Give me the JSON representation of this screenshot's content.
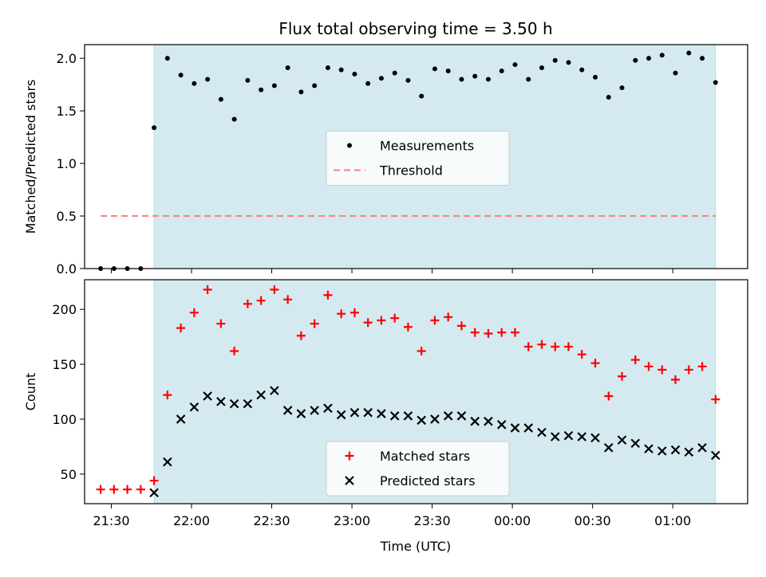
{
  "figure": {
    "title": "Flux total observing time = 3.50 h",
    "xlabel": "Time (UTC)",
    "x_tick_labels": [
      "21:30",
      "22:00",
      "22:30",
      "23:00",
      "23:30",
      "00:00",
      "00:30",
      "01:00"
    ],
    "colors": {
      "observing_band": "#d4eaf0",
      "measurements": "#000000",
      "threshold": "#ff7f7f",
      "matched": "#ff0000",
      "predicted": "#000000"
    }
  },
  "chart_data": [
    {
      "type": "scatter",
      "ylabel": "Matched/Predicted stars",
      "ylim": [
        0.0,
        2.13
      ],
      "y_ticks": [
        "0.0",
        "0.5",
        "1.0",
        "1.5",
        "2.0"
      ],
      "x_range": [
        "21:20",
        "01:28"
      ],
      "shaded_span": [
        "21:46",
        "01:16"
      ],
      "legend_placement": "center",
      "series": [
        {
          "name": "Measurements",
          "marker": "dot",
          "x": [
            "21:26",
            "21:31",
            "21:36",
            "21:41",
            "21:46",
            "21:51",
            "21:56",
            "22:01",
            "22:06",
            "22:11",
            "22:16",
            "22:21",
            "22:26",
            "22:31",
            "22:36",
            "22:41",
            "22:46",
            "22:51",
            "22:56",
            "23:01",
            "23:06",
            "23:11",
            "23:16",
            "23:21",
            "23:26",
            "23:31",
            "23:36",
            "23:41",
            "23:46",
            "23:51",
            "23:56",
            "00:01",
            "00:06",
            "00:11",
            "00:16",
            "00:21",
            "00:26",
            "00:31",
            "00:36",
            "00:41",
            "00:46",
            "00:51",
            "00:56",
            "01:01",
            "01:06",
            "01:11",
            "01:16"
          ],
          "y": [
            0.0,
            0.0,
            0.0,
            0.0,
            1.34,
            2.0,
            1.84,
            1.76,
            1.8,
            1.61,
            1.42,
            1.79,
            1.7,
            1.74,
            1.91,
            1.68,
            1.74,
            1.91,
            1.89,
            1.85,
            1.76,
            1.81,
            1.86,
            1.79,
            1.64,
            1.9,
            1.88,
            1.8,
            1.83,
            1.8,
            1.88,
            1.94,
            1.8,
            1.91,
            1.98,
            1.96,
            1.89,
            1.82,
            1.63,
            1.72,
            1.98,
            2.0,
            2.03,
            1.86,
            2.05,
            2.0,
            1.77
          ]
        },
        {
          "name": "Threshold",
          "marker": "dashed-line",
          "x": [
            "21:26",
            "01:16"
          ],
          "y": [
            0.5,
            0.5
          ]
        }
      ]
    },
    {
      "type": "scatter",
      "ylabel": "Count",
      "ylim": [
        23,
        227
      ],
      "y_ticks": [
        "50",
        "100",
        "150",
        "200"
      ],
      "x_range": [
        "21:20",
        "01:28"
      ],
      "shaded_span": [
        "21:46",
        "01:16"
      ],
      "legend_placement": "lower center",
      "series": [
        {
          "name": "Matched stars",
          "marker": "plus",
          "x": [
            "21:26",
            "21:31",
            "21:36",
            "21:41",
            "21:46",
            "21:51",
            "21:56",
            "22:01",
            "22:06",
            "22:11",
            "22:16",
            "22:21",
            "22:26",
            "22:31",
            "22:36",
            "22:41",
            "22:46",
            "22:51",
            "22:56",
            "23:01",
            "23:06",
            "23:11",
            "23:16",
            "23:21",
            "23:26",
            "23:31",
            "23:36",
            "23:41",
            "23:46",
            "23:51",
            "23:56",
            "00:01",
            "00:06",
            "00:11",
            "00:16",
            "00:21",
            "00:26",
            "00:31",
            "00:36",
            "00:41",
            "00:46",
            "00:51",
            "00:56",
            "01:01",
            "01:06",
            "01:11",
            "01:16"
          ],
          "y": [
            36,
            36,
            36,
            36,
            44,
            122,
            183,
            197,
            218,
            187,
            162,
            205,
            208,
            218,
            209,
            176,
            187,
            213,
            196,
            197,
            188,
            190,
            192,
            184,
            162,
            190,
            193,
            185,
            179,
            178,
            179,
            179,
            166,
            168,
            166,
            166,
            159,
            151,
            121,
            139,
            154,
            148,
            145,
            136,
            145,
            148,
            118
          ]
        },
        {
          "name": "Predicted stars",
          "marker": "x",
          "x": [
            "21:46",
            "21:51",
            "21:56",
            "22:01",
            "22:06",
            "22:11",
            "22:16",
            "22:21",
            "22:26",
            "22:31",
            "22:36",
            "22:41",
            "22:46",
            "22:51",
            "22:56",
            "23:01",
            "23:06",
            "23:11",
            "23:16",
            "23:21",
            "23:26",
            "23:31",
            "23:36",
            "23:41",
            "23:46",
            "23:51",
            "23:56",
            "00:01",
            "00:06",
            "00:11",
            "00:16",
            "00:21",
            "00:26",
            "00:31",
            "00:36",
            "00:41",
            "00:46",
            "00:51",
            "00:56",
            "01:01",
            "01:06",
            "01:11",
            "01:16"
          ],
          "y": [
            33,
            61,
            100,
            111,
            121,
            116,
            114,
            114,
            122,
            126,
            108,
            105,
            108,
            110,
            104,
            106,
            106,
            105,
            103,
            103,
            99,
            100,
            103,
            103,
            98,
            98,
            95,
            92,
            92,
            88,
            84,
            85,
            84,
            83,
            74,
            81,
            78,
            73,
            71,
            72,
            70,
            74,
            67
          ]
        }
      ]
    }
  ]
}
